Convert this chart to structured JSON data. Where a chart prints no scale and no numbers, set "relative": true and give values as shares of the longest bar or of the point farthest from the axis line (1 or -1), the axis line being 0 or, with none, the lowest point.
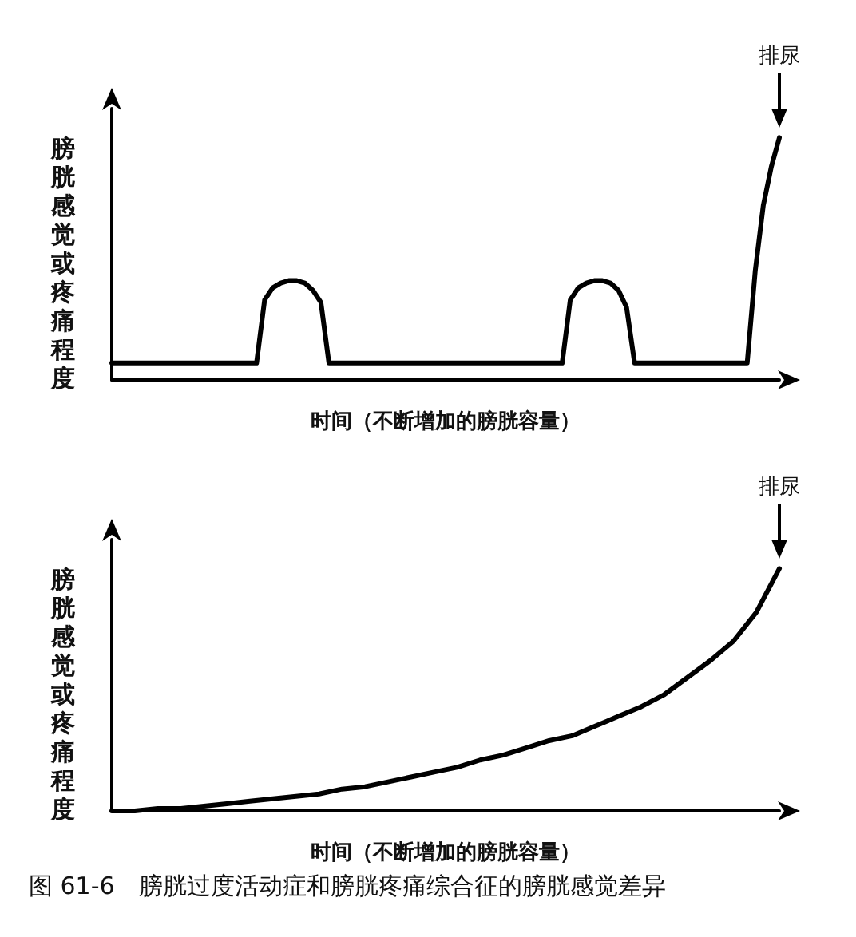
{
  "chart_data": [
    {
      "type": "line",
      "relative": true,
      "xlabel": "时间（不断增加的膀胱容量）",
      "ylabel": "膀胱感觉或疼痛程度",
      "grid": false,
      "marker": "none",
      "line_style": "solid",
      "annotations": [
        "排尿"
      ],
      "categories": [
        null,
        null,
        null,
        null,
        null,
        null,
        null,
        null,
        null,
        null,
        null,
        null,
        null,
        null,
        null,
        null,
        null,
        null,
        null,
        null,
        null,
        null,
        null,
        null,
        null,
        null,
        null,
        null,
        null,
        null,
        null,
        null,
        null,
        null,
        null,
        null,
        null,
        null,
        null,
        null,
        null,
        null,
        null,
        null,
        null,
        null,
        null,
        null,
        null,
        null,
        null,
        null,
        null,
        null,
        null,
        null,
        null,
        null,
        null,
        null,
        null,
        null,
        null,
        null,
        null,
        null,
        null,
        null,
        null,
        null,
        null,
        null,
        null,
        null,
        null,
        null,
        null,
        null,
        null,
        null,
        null,
        null,
        null,
        null
      ],
      "series": [
        {
          "color": "#000000",
          "values": [
            0.07,
            0.07,
            0.07,
            0.07,
            0.07,
            0.07,
            0.07,
            0.07,
            0.07,
            0.07,
            0.07,
            0.07,
            0.07,
            0.07,
            0.07,
            0.07,
            0.07,
            0.07,
            0.07,
            0.33,
            0.38,
            0.4,
            0.41,
            0.41,
            0.4,
            0.37,
            0.32,
            0.07,
            0.07,
            0.07,
            0.07,
            0.07,
            0.07,
            0.07,
            0.07,
            0.07,
            0.07,
            0.07,
            0.07,
            0.07,
            0.07,
            0.07,
            0.07,
            0.07,
            0.07,
            0.07,
            0.07,
            0.07,
            0.07,
            0.07,
            0.07,
            0.07,
            0.07,
            0.07,
            0.07,
            0.07,
            0.07,
            0.33,
            0.38,
            0.4,
            0.41,
            0.41,
            0.4,
            0.37,
            0.3,
            0.07,
            0.07,
            0.07,
            0.07,
            0.07,
            0.07,
            0.07,
            0.07,
            0.07,
            0.07,
            0.07,
            0.07,
            0.07,
            0.07,
            0.07,
            0.45,
            0.72,
            0.88,
            1
          ]
        }
      ]
    },
    {
      "type": "line",
      "relative": true,
      "xlabel": "时间（不断增加的膀胱容量）",
      "ylabel": "膀胱感觉或疼痛程度",
      "grid": false,
      "marker": "none",
      "line_style": "solid",
      "annotations": [
        "排尿",
        "图 61-6　膀胱过度活动症和膀胱疼痛综合征的膀胱感觉差异"
      ],
      "categories": [
        null,
        null,
        null,
        null,
        null,
        null,
        null,
        null,
        null,
        null,
        null,
        null,
        null,
        null,
        null,
        null,
        null,
        null,
        null,
        null,
        null,
        null,
        null,
        null,
        null,
        null,
        null,
        null,
        null,
        null
      ],
      "series": [
        {
          "color": "#000000",
          "values": [
            0,
            0,
            0.01,
            0.01,
            0.02,
            0.03,
            0.04,
            0.05,
            0.06,
            0.07,
            0.09,
            0.1,
            0.12,
            0.14,
            0.16,
            0.18,
            0.21,
            0.23,
            0.26,
            0.29,
            0.31,
            0.35,
            0.39,
            0.43,
            0.48,
            0.55,
            0.62,
            0.7,
            0.82,
            1
          ]
        }
      ]
    }
  ]
}
